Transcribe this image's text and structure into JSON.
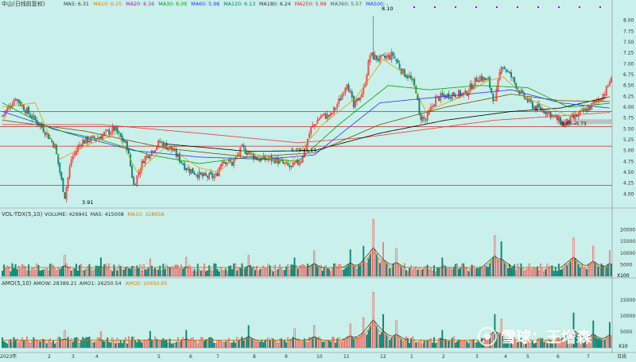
{
  "colors": {
    "bg": "#c9f0ea",
    "up": "#ff2a2a",
    "down": "#0a8a7a",
    "grid": "#e23b3b",
    "ma5": "#222222",
    "ma10": "#e0a000",
    "ma20": "#c000c0",
    "ma30": "#00a000",
    "ma60": "#3030ff",
    "ma120": "#7a4a00",
    "ma180": "#000000",
    "ma250": "#ff3030",
    "text_dark": "#333333"
  },
  "header": {
    "stock_name": "中山(日线前复权)",
    "ma_labels": [
      {
        "name": "MA5",
        "value": "6.31",
        "color": "#333333"
      },
      {
        "name": "MA10",
        "value": "6.25",
        "color": "#e08000"
      },
      {
        "name": "MA20",
        "value": "6.16",
        "color": "#c000c0"
      },
      {
        "name": "MA30",
        "value": "6.09",
        "color": "#00a000"
      },
      {
        "name": "MA60",
        "value": "5.98",
        "color": "#3030ff"
      },
      {
        "name": "MA120",
        "value": "6.13",
        "color": "#007777"
      },
      {
        "name": "MA180",
        "value": "6.24",
        "color": "#333333"
      },
      {
        "name": "MA250",
        "value": "5.88",
        "color": "#ff2020"
      },
      {
        "name": "MA360",
        "value": "5.57",
        "color": "#555555"
      },
      {
        "name": "MA500",
        "value": "-",
        "color": "#3030ff"
      }
    ]
  },
  "vol_header": {
    "title": "VOL-TDX(5,10)",
    "items": [
      {
        "name": "VOLUME",
        "value": "429941",
        "color": "#333333"
      },
      {
        "name": "MA5",
        "value": "415008",
        "color": "#333333"
      },
      {
        "name": "MA10",
        "value": "328658",
        "color": "#e08000"
      }
    ]
  },
  "amo_header": {
    "title": "AMO(5,10)",
    "items": [
      {
        "name": "AMOW",
        "value": "28389.21",
        "color": "#333333"
      },
      {
        "name": "AMO1",
        "value": "26250.54",
        "color": "#333333"
      },
      {
        "name": "AMO2",
        "value": "20650.65",
        "color": "#e08000"
      }
    ]
  },
  "annotations": {
    "low_label": "3.91",
    "high_label": "8.10",
    "mid_label": "5.09→5.14",
    "right_label": "5.65→5.73",
    "vol_unit": "X100",
    "amo_unit": "X10",
    "period_label": "日线",
    "watermark": "雪球：王增森"
  },
  "chart_data": [
    {
      "type": "candlestick",
      "name": "price",
      "ylim": [
        3.75,
        8.25
      ],
      "yticks": [
        "8.00",
        "7.75",
        "7.50",
        "7.25",
        "7.00",
        "6.75",
        "6.50",
        "6.25",
        "6.00",
        "5.75",
        "5.50",
        "5.25",
        "5.00",
        "4.75",
        "4.50",
        "4.25",
        "4.00"
      ],
      "hlines": [
        5.9,
        5.55,
        5.1,
        4.2
      ],
      "x_labels": [
        "2023年",
        "2",
        "3",
        "4",
        "5",
        "6",
        "7",
        "8",
        "9",
        "10",
        "11",
        "12",
        "1",
        "2",
        "3",
        "4",
        "5",
        "6",
        "7",
        "日线"
      ],
      "price_keypoints": [
        [
          0,
          5.8
        ],
        [
          8,
          6.22
        ],
        [
          15,
          5.9
        ],
        [
          25,
          5.5
        ],
        [
          32,
          5.1
        ],
        [
          36,
          4.3
        ],
        [
          38,
          3.95
        ],
        [
          42,
          4.8
        ],
        [
          48,
          5.2
        ],
        [
          58,
          5.3
        ],
        [
          68,
          5.5
        ],
        [
          76,
          5.1
        ],
        [
          80,
          4.2
        ],
        [
          86,
          4.8
        ],
        [
          96,
          5.2
        ],
        [
          104,
          5.0
        ],
        [
          112,
          4.6
        ],
        [
          122,
          4.4
        ],
        [
          130,
          4.4
        ],
        [
          134,
          4.8
        ],
        [
          140,
          4.7
        ],
        [
          146,
          5.05
        ],
        [
          156,
          4.8
        ],
        [
          166,
          4.8
        ],
        [
          176,
          4.6
        ],
        [
          182,
          4.8
        ],
        [
          188,
          5.5
        ],
        [
          194,
          5.8
        ],
        [
          200,
          5.8
        ],
        [
          206,
          6.2
        ],
        [
          210,
          6.6
        ],
        [
          214,
          6.0
        ],
        [
          220,
          6.4
        ],
        [
          224,
          7.2
        ],
        [
          230,
          7.1
        ],
        [
          238,
          7.2
        ],
        [
          244,
          6.8
        ],
        [
          248,
          6.7
        ],
        [
          252,
          6.4
        ],
        [
          254,
          5.8
        ],
        [
          258,
          5.7
        ],
        [
          264,
          6.2
        ],
        [
          274,
          6.3
        ],
        [
          282,
          6.3
        ],
        [
          290,
          6.7
        ],
        [
          296,
          6.6
        ],
        [
          300,
          6.1
        ],
        [
          304,
          7.0
        ],
        [
          310,
          6.7
        ],
        [
          316,
          6.3
        ],
        [
          324,
          6.0
        ],
        [
          332,
          5.9
        ],
        [
          342,
          5.6
        ],
        [
          350,
          5.8
        ],
        [
          358,
          6.0
        ],
        [
          364,
          6.2
        ],
        [
          368,
          6.4
        ],
        [
          370,
          6.6
        ]
      ],
      "ma_keypoints": {
        "ma250": [
          [
            0,
            5.6
          ],
          [
            60,
            5.6
          ],
          [
            120,
            5.4
          ],
          [
            180,
            5.18
          ],
          [
            220,
            5.3
          ],
          [
            260,
            5.5
          ],
          [
            300,
            5.7
          ],
          [
            340,
            5.8
          ],
          [
            370,
            5.88
          ]
        ],
        "ma180": [
          [
            100,
            5.15
          ],
          [
            150,
            4.98
          ],
          [
            190,
            5.0
          ],
          [
            230,
            5.4
          ],
          [
            270,
            5.7
          ],
          [
            310,
            5.9
          ],
          [
            340,
            5.98
          ],
          [
            370,
            6.24
          ]
        ],
        "ma120": [
          [
            0,
            5.7
          ],
          [
            50,
            5.45
          ],
          [
            100,
            5.05
          ],
          [
            150,
            4.85
          ],
          [
            190,
            4.95
          ],
          [
            230,
            5.6
          ],
          [
            270,
            6.0
          ],
          [
            310,
            6.3
          ],
          [
            340,
            6.15
          ],
          [
            370,
            6.13
          ]
        ],
        "ma60": [
          [
            0,
            5.9
          ],
          [
            40,
            5.4
          ],
          [
            80,
            5.0
          ],
          [
            120,
            4.85
          ],
          [
            160,
            4.8
          ],
          [
            190,
            4.9
          ],
          [
            230,
            6.1
          ],
          [
            270,
            6.25
          ],
          [
            310,
            6.4
          ],
          [
            340,
            6.1
          ],
          [
            370,
            5.98
          ]
        ],
        "ma30": [
          [
            0,
            6.1
          ],
          [
            30,
            5.5
          ],
          [
            60,
            5.25
          ],
          [
            90,
            4.9
          ],
          [
            120,
            4.7
          ],
          [
            150,
            4.85
          ],
          [
            180,
            4.75
          ],
          [
            205,
            5.6
          ],
          [
            235,
            6.5
          ],
          [
            260,
            6.4
          ],
          [
            290,
            6.5
          ],
          [
            320,
            6.45
          ],
          [
            345,
            6.0
          ],
          [
            370,
            6.09
          ]
        ],
        "ma10": [
          [
            0,
            6.0
          ],
          [
            20,
            6.1
          ],
          [
            35,
            4.8
          ],
          [
            50,
            5.1
          ],
          [
            70,
            5.4
          ],
          [
            82,
            4.5
          ],
          [
            100,
            5.1
          ],
          [
            120,
            4.6
          ],
          [
            132,
            4.5
          ],
          [
            146,
            5.0
          ],
          [
            175,
            4.7
          ],
          [
            195,
            5.6
          ],
          [
            215,
            6.2
          ],
          [
            232,
            7.1
          ],
          [
            248,
            6.7
          ],
          [
            258,
            5.9
          ],
          [
            280,
            6.25
          ],
          [
            295,
            6.6
          ],
          [
            305,
            6.7
          ],
          [
            320,
            6.2
          ],
          [
            345,
            5.8
          ],
          [
            370,
            6.25
          ]
        ]
      }
    },
    {
      "type": "bar",
      "name": "volume",
      "ylim": [
        0,
        25000
      ],
      "yticks": [
        "20000",
        "15000",
        "10000",
        "5000"
      ],
      "spikes": [
        [
          38,
          9000
        ],
        [
          60,
          8000
        ],
        [
          90,
          7500
        ],
        [
          112,
          8200
        ],
        [
          150,
          9000
        ],
        [
          178,
          8000
        ],
        [
          190,
          11000
        ],
        [
          212,
          11500
        ],
        [
          220,
          13000
        ],
        [
          226,
          24500
        ],
        [
          232,
          14500
        ],
        [
          240,
          12000
        ],
        [
          268,
          8000
        ],
        [
          300,
          17500
        ],
        [
          304,
          15000
        ],
        [
          348,
          16500
        ],
        [
          360,
          13000
        ],
        [
          370,
          11000
        ]
      ],
      "base_range": [
        2000,
        5500
      ]
    },
    {
      "type": "bar",
      "name": "amount",
      "ylim": [
        0,
        19000
      ],
      "yticks": [
        "15000",
        "10000",
        "5000"
      ],
      "spikes": [
        [
          38,
          5500
        ],
        [
          60,
          5000
        ],
        [
          90,
          5200
        ],
        [
          112,
          5500
        ],
        [
          150,
          7000
        ],
        [
          178,
          6000
        ],
        [
          190,
          7000
        ],
        [
          212,
          7500
        ],
        [
          220,
          9500
        ],
        [
          226,
          17500
        ],
        [
          232,
          10500
        ],
        [
          240,
          8500
        ],
        [
          268,
          5500
        ],
        [
          300,
          10500
        ],
        [
          304,
          9000
        ],
        [
          348,
          11000
        ],
        [
          360,
          8500
        ],
        [
          370,
          8000
        ]
      ],
      "base_range": [
        1200,
        3500
      ]
    }
  ]
}
